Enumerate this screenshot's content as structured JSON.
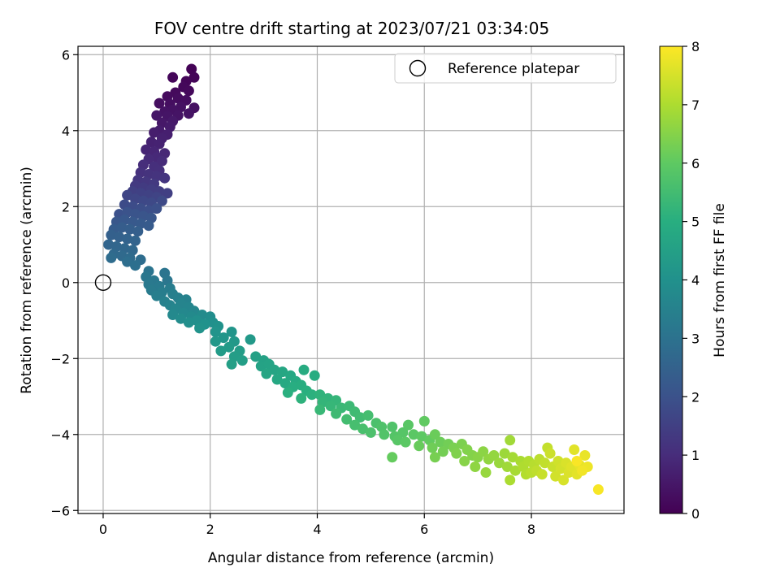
{
  "chart_data": {
    "type": "scatter",
    "title": "FOV centre drift starting at 2023/07/21 03:34:05",
    "xlabel": "Angular distance from reference (arcmin)",
    "ylabel": "Rotation from reference (arcmin)",
    "xlim": [
      -0.47,
      9.73
    ],
    "ylim": [
      -6.08,
      6.22
    ],
    "xticks": [
      0,
      2,
      4,
      6,
      8
    ],
    "yticks": [
      -6,
      -4,
      -2,
      0,
      2,
      4,
      6
    ],
    "grid": true,
    "legend": {
      "position": "top-right",
      "entries": [
        {
          "label": "Reference platepar",
          "marker": "open-circle"
        }
      ]
    },
    "reference_point": {
      "x": 0,
      "y": 0,
      "label": "Reference platepar"
    },
    "colorbar": {
      "label": "Hours from first FF file",
      "colormap": "viridis",
      "range": [
        0,
        8
      ],
      "ticks": [
        0,
        1,
        2,
        3,
        4,
        5,
        6,
        7,
        8
      ]
    },
    "series": [
      {
        "points": [
          [
            1.65,
            5.62,
            0.05
          ],
          [
            1.7,
            5.4,
            0.08
          ],
          [
            1.55,
            5.3,
            0.1
          ],
          [
            1.3,
            5.4,
            0.12
          ],
          [
            1.5,
            5.15,
            0.15
          ],
          [
            1.6,
            5.05,
            0.18
          ],
          [
            1.35,
            5.0,
            0.2
          ],
          [
            1.2,
            4.9,
            0.22
          ],
          [
            1.4,
            4.85,
            0.25
          ],
          [
            1.55,
            4.8,
            0.27
          ],
          [
            1.25,
            4.7,
            0.3
          ],
          [
            1.05,
            4.72,
            0.32
          ],
          [
            1.7,
            4.6,
            0.34
          ],
          [
            1.45,
            4.62,
            0.36
          ],
          [
            1.3,
            4.55,
            0.38
          ],
          [
            1.15,
            4.5,
            0.4
          ],
          [
            1.6,
            4.45,
            0.42
          ],
          [
            1.4,
            4.4,
            0.44
          ],
          [
            1.2,
            4.38,
            0.46
          ],
          [
            1.0,
            4.4,
            0.48
          ],
          [
            1.1,
            4.2,
            0.52
          ],
          [
            1.3,
            4.25,
            0.55
          ],
          [
            1.25,
            4.1,
            0.58
          ],
          [
            1.05,
            4.0,
            0.62
          ],
          [
            0.95,
            3.95,
            0.65
          ],
          [
            1.2,
            3.9,
            0.68
          ],
          [
            1.1,
            3.8,
            0.72
          ],
          [
            0.9,
            3.7,
            0.75
          ],
          [
            1.05,
            3.65,
            0.78
          ],
          [
            0.8,
            3.5,
            0.82
          ],
          [
            0.95,
            3.45,
            0.85
          ],
          [
            1.15,
            3.4,
            0.88
          ],
          [
            1.0,
            3.3,
            0.92
          ],
          [
            0.85,
            3.25,
            0.95
          ],
          [
            1.1,
            3.2,
            0.98
          ],
          [
            0.75,
            3.1,
            1.02
          ],
          [
            0.95,
            3.05,
            1.05
          ],
          [
            1.05,
            2.95,
            1.08
          ],
          [
            0.7,
            2.9,
            1.12
          ],
          [
            0.85,
            2.85,
            1.15
          ],
          [
            1.0,
            2.8,
            1.18
          ],
          [
            1.15,
            2.75,
            1.22
          ],
          [
            0.65,
            2.7,
            1.25
          ],
          [
            0.8,
            2.65,
            1.28
          ],
          [
            0.95,
            2.6,
            1.32
          ],
          [
            0.6,
            2.55,
            1.35
          ],
          [
            0.75,
            2.5,
            1.38
          ],
          [
            0.9,
            2.45,
            1.42
          ],
          [
            1.05,
            2.4,
            1.45
          ],
          [
            1.2,
            2.35,
            1.48
          ],
          [
            0.55,
            2.4,
            1.52
          ],
          [
            0.7,
            2.35,
            1.55
          ],
          [
            0.85,
            2.3,
            1.58
          ],
          [
            1.0,
            2.25,
            1.62
          ],
          [
            0.45,
            2.3,
            1.65
          ],
          [
            0.6,
            2.2,
            1.68
          ],
          [
            0.75,
            2.15,
            1.72
          ],
          [
            0.9,
            2.1,
            1.75
          ],
          [
            1.1,
            2.15,
            1.78
          ],
          [
            0.4,
            2.05,
            1.82
          ],
          [
            0.55,
            2.0,
            1.85
          ],
          [
            0.7,
            1.95,
            1.88
          ],
          [
            0.85,
            1.9,
            1.92
          ],
          [
            1.0,
            1.95,
            1.95
          ],
          [
            0.3,
            1.8,
            1.98
          ],
          [
            0.45,
            1.85,
            2.02
          ],
          [
            0.6,
            1.8,
            2.05
          ],
          [
            0.75,
            1.75,
            2.08
          ],
          [
            0.9,
            1.7,
            2.12
          ],
          [
            0.25,
            1.6,
            2.15
          ],
          [
            0.4,
            1.65,
            2.18
          ],
          [
            0.55,
            1.6,
            2.22
          ],
          [
            0.7,
            1.55,
            2.25
          ],
          [
            0.85,
            1.5,
            2.28
          ],
          [
            0.2,
            1.4,
            2.32
          ],
          [
            0.35,
            1.45,
            2.35
          ],
          [
            0.5,
            1.4,
            2.38
          ],
          [
            0.65,
            1.35,
            2.42
          ],
          [
            0.15,
            1.25,
            2.45
          ],
          [
            0.3,
            1.2,
            2.48
          ],
          [
            0.45,
            1.15,
            2.52
          ],
          [
            0.6,
            1.1,
            2.55
          ],
          [
            0.1,
            1.0,
            2.58
          ],
          [
            0.25,
            0.95,
            2.62
          ],
          [
            0.4,
            0.9,
            2.65
          ],
          [
            0.55,
            0.85,
            2.68
          ],
          [
            0.2,
            0.75,
            2.72
          ],
          [
            0.35,
            0.7,
            2.75
          ],
          [
            0.5,
            0.65,
            2.78
          ],
          [
            0.15,
            0.65,
            2.82
          ],
          [
            0.7,
            0.6,
            2.85
          ],
          [
            0.45,
            0.55,
            2.88
          ],
          [
            0.6,
            0.45,
            2.92
          ],
          [
            1.15,
            0.25,
            3.05
          ],
          [
            0.85,
            0.3,
            3.08
          ],
          [
            1.2,
            0.05,
            3.12
          ],
          [
            0.8,
            0.15,
            3.15
          ],
          [
            0.95,
            0.05,
            3.18
          ],
          [
            0.85,
            -0.05,
            3.22
          ],
          [
            1.05,
            -0.1,
            3.25
          ],
          [
            0.9,
            -0.2,
            3.28
          ],
          [
            1.25,
            -0.15,
            3.32
          ],
          [
            1.1,
            -0.25,
            3.35
          ],
          [
            1.0,
            -0.35,
            3.38
          ],
          [
            1.3,
            -0.3,
            3.42
          ],
          [
            1.4,
            -0.4,
            3.45
          ],
          [
            1.15,
            -0.5,
            3.48
          ],
          [
            1.55,
            -0.45,
            3.52
          ],
          [
            1.25,
            -0.6,
            3.55
          ],
          [
            1.45,
            -0.55,
            3.58
          ],
          [
            1.6,
            -0.65,
            3.62
          ],
          [
            1.35,
            -0.7,
            3.65
          ],
          [
            1.7,
            -0.75,
            3.68
          ],
          [
            1.5,
            -0.8,
            3.72
          ],
          [
            1.3,
            -0.85,
            3.75
          ],
          [
            1.65,
            -0.9,
            3.78
          ],
          [
            1.85,
            -0.85,
            3.82
          ],
          [
            1.45,
            -0.95,
            3.85
          ],
          [
            2.0,
            -0.9,
            3.88
          ],
          [
            1.75,
            -1.0,
            3.92
          ],
          [
            1.6,
            -1.05,
            3.95
          ],
          [
            2.05,
            -1.05,
            3.98
          ],
          [
            1.9,
            -1.1,
            4.02
          ],
          [
            2.15,
            -1.15,
            4.05
          ],
          [
            1.8,
            -1.2,
            4.08
          ],
          [
            2.1,
            -1.3,
            4.12
          ],
          [
            2.4,
            -1.3,
            4.15
          ],
          [
            2.25,
            -1.45,
            4.18
          ],
          [
            2.1,
            -1.55,
            4.22
          ],
          [
            2.45,
            -1.55,
            4.25
          ],
          [
            2.75,
            -1.5,
            4.28
          ],
          [
            2.35,
            -1.7,
            4.32
          ],
          [
            2.2,
            -1.8,
            4.35
          ],
          [
            2.55,
            -1.8,
            4.38
          ],
          [
            2.45,
            -1.95,
            4.42
          ],
          [
            2.6,
            -2.05,
            4.45
          ],
          [
            2.4,
            -2.15,
            4.48
          ],
          [
            2.85,
            -1.95,
            4.52
          ],
          [
            3.0,
            -2.05,
            4.55
          ],
          [
            2.95,
            -2.2,
            4.58
          ],
          [
            3.1,
            -2.15,
            4.62
          ],
          [
            3.2,
            -2.3,
            4.65
          ],
          [
            3.05,
            -2.4,
            4.68
          ],
          [
            3.35,
            -2.35,
            4.72
          ],
          [
            3.25,
            -2.55,
            4.75
          ],
          [
            3.5,
            -2.45,
            4.78
          ],
          [
            3.4,
            -2.65,
            4.82
          ],
          [
            3.6,
            -2.6,
            4.85
          ],
          [
            3.75,
            -2.3,
            4.88
          ],
          [
            3.95,
            -2.45,
            4.92
          ],
          [
            3.55,
            -2.75,
            4.95
          ],
          [
            3.7,
            -2.7,
            4.98
          ],
          [
            3.8,
            -2.85,
            5.02
          ],
          [
            3.45,
            -2.9,
            5.05
          ],
          [
            3.9,
            -2.95,
            5.08
          ],
          [
            3.7,
            -3.05,
            5.12
          ],
          [
            4.05,
            -2.95,
            5.15
          ],
          [
            4.2,
            -3.05,
            5.18
          ],
          [
            4.1,
            -3.15,
            5.22
          ],
          [
            4.35,
            -3.1,
            5.25
          ],
          [
            4.25,
            -3.25,
            5.28
          ],
          [
            4.05,
            -3.35,
            5.32
          ],
          [
            4.45,
            -3.3,
            5.35
          ],
          [
            4.6,
            -3.25,
            5.38
          ],
          [
            4.35,
            -3.45,
            5.42
          ],
          [
            4.7,
            -3.4,
            5.45
          ],
          [
            4.8,
            -3.55,
            5.48
          ],
          [
            4.55,
            -3.6,
            5.52
          ],
          [
            4.95,
            -3.5,
            5.55
          ],
          [
            4.7,
            -3.75,
            5.58
          ],
          [
            4.85,
            -3.85,
            5.62
          ],
          [
            5.1,
            -3.7,
            5.65
          ],
          [
            5.0,
            -3.95,
            5.68
          ],
          [
            5.2,
            -3.8,
            5.72
          ],
          [
            5.4,
            -3.8,
            5.75
          ],
          [
            5.25,
            -4.0,
            5.78
          ],
          [
            5.45,
            -4.05,
            5.82
          ],
          [
            5.6,
            -3.95,
            5.85
          ],
          [
            5.5,
            -4.15,
            5.88
          ],
          [
            5.7,
            -3.75,
            5.9
          ],
          [
            5.8,
            -4.0,
            5.92
          ],
          [
            5.65,
            -4.2,
            5.95
          ],
          [
            5.95,
            -4.05,
            5.98
          ],
          [
            6.0,
            -3.65,
            6.02
          ],
          [
            6.1,
            -4.15,
            6.05
          ],
          [
            5.4,
            -4.6,
            6.08
          ],
          [
            5.9,
            -4.3,
            6.12
          ],
          [
            6.2,
            -4.0,
            6.15
          ],
          [
            6.3,
            -4.2,
            6.18
          ],
          [
            6.15,
            -4.35,
            6.22
          ],
          [
            6.45,
            -4.25,
            6.25
          ],
          [
            6.35,
            -4.45,
            6.28
          ],
          [
            6.2,
            -4.6,
            6.32
          ],
          [
            6.55,
            -4.35,
            6.35
          ],
          [
            6.7,
            -4.25,
            6.38
          ],
          [
            6.6,
            -4.5,
            6.42
          ],
          [
            6.8,
            -4.4,
            6.45
          ],
          [
            6.9,
            -4.55,
            6.48
          ],
          [
            6.75,
            -4.7,
            6.52
          ],
          [
            7.0,
            -4.6,
            6.55
          ],
          [
            7.1,
            -4.45,
            6.58
          ],
          [
            6.95,
            -4.85,
            6.62
          ],
          [
            7.2,
            -4.65,
            6.65
          ],
          [
            7.3,
            -4.55,
            6.68
          ],
          [
            7.15,
            -5.0,
            6.72
          ],
          [
            7.4,
            -4.75,
            6.75
          ],
          [
            7.5,
            -4.5,
            6.78
          ],
          [
            7.55,
            -4.85,
            6.82
          ],
          [
            7.6,
            -4.15,
            6.85
          ],
          [
            7.65,
            -4.6,
            6.88
          ],
          [
            7.7,
            -4.95,
            6.92
          ],
          [
            7.8,
            -4.7,
            6.95
          ],
          [
            7.6,
            -5.2,
            6.98
          ],
          [
            7.85,
            -4.85,
            7.02
          ],
          [
            7.95,
            -4.7,
            7.05
          ],
          [
            7.9,
            -5.05,
            7.08
          ],
          [
            8.05,
            -4.8,
            7.12
          ],
          [
            8.0,
            -5.0,
            7.15
          ],
          [
            8.15,
            -4.65,
            7.18
          ],
          [
            8.1,
            -4.95,
            7.22
          ],
          [
            8.25,
            -4.75,
            7.25
          ],
          [
            8.3,
            -4.35,
            7.28
          ],
          [
            8.2,
            -5.05,
            7.32
          ],
          [
            8.4,
            -4.85,
            7.35
          ],
          [
            8.35,
            -4.5,
            7.38
          ],
          [
            8.5,
            -4.7,
            7.42
          ],
          [
            8.45,
            -5.1,
            7.45
          ],
          [
            8.55,
            -4.9,
            7.48
          ],
          [
            8.6,
            -5.2,
            7.52
          ],
          [
            8.65,
            -4.75,
            7.55
          ],
          [
            8.7,
            -5.0,
            7.58
          ],
          [
            8.75,
            -4.85,
            7.62
          ],
          [
            8.8,
            -4.4,
            7.65
          ],
          [
            8.85,
            -5.05,
            7.68
          ],
          [
            8.9,
            -4.8,
            7.72
          ],
          [
            9.0,
            -4.55,
            7.75
          ],
          [
            9.05,
            -4.85,
            7.8
          ],
          [
            8.95,
            -4.95,
            7.85
          ],
          [
            9.25,
            -5.45,
            7.92
          ],
          [
            8.85,
            -4.7,
            7.95
          ]
        ]
      }
    ]
  }
}
